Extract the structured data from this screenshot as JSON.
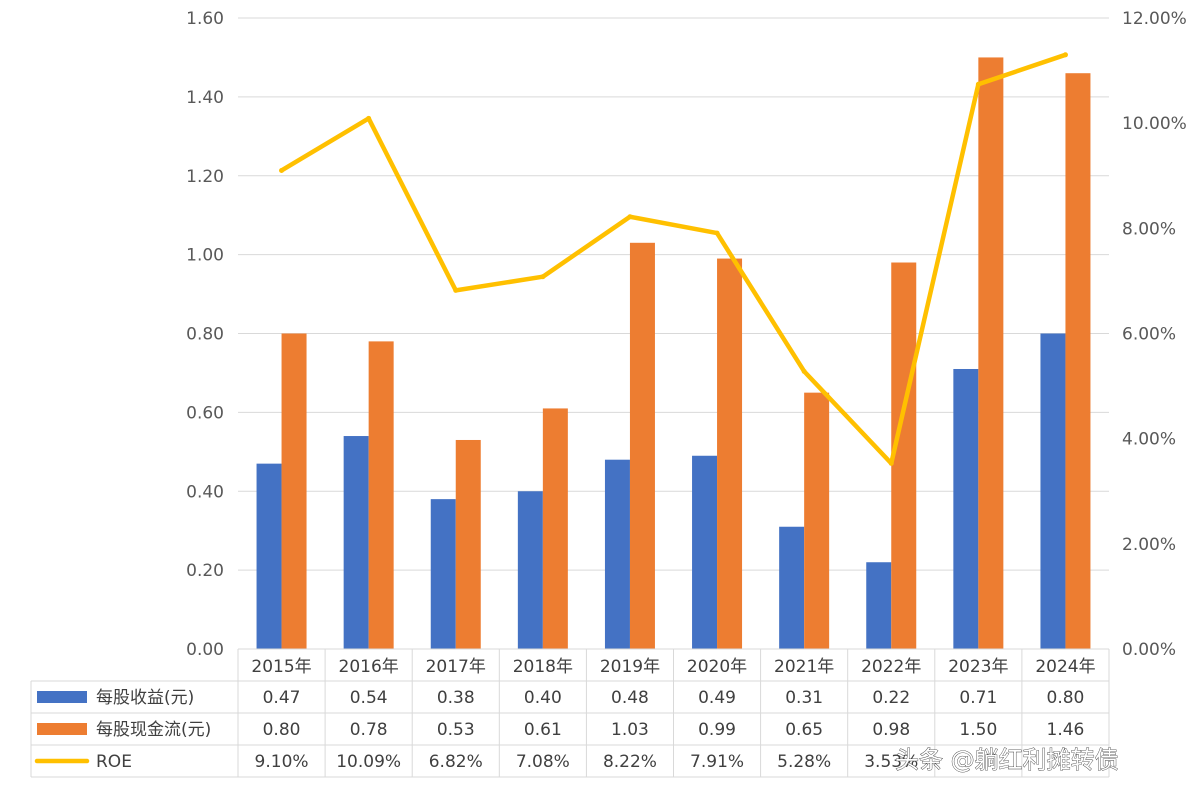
{
  "chart_data": {
    "type": "bar",
    "categories": [
      "2015年",
      "2016年",
      "2017年",
      "2018年",
      "2019年",
      "2020年",
      "2021年",
      "2022年",
      "2023年",
      "2024年"
    ],
    "series": [
      {
        "name": "每股收益(元)",
        "kind": "bar",
        "axis": "left",
        "color": "#4472C4",
        "values": [
          0.47,
          0.54,
          0.38,
          0.4,
          0.48,
          0.49,
          0.31,
          0.22,
          0.71,
          0.8
        ],
        "labels": [
          "0.47",
          "0.54",
          "0.38",
          "0.40",
          "0.48",
          "0.49",
          "0.31",
          "0.22",
          "0.71",
          "0.80"
        ]
      },
      {
        "name": "每股现金流(元)",
        "kind": "bar",
        "axis": "left",
        "color": "#ED7D31",
        "values": [
          0.8,
          0.78,
          0.53,
          0.61,
          1.03,
          0.99,
          0.65,
          0.98,
          1.5,
          1.46
        ],
        "labels": [
          "0.80",
          "0.78",
          "0.53",
          "0.61",
          "1.03",
          "0.99",
          "0.65",
          "0.98",
          "1.50",
          "1.46"
        ]
      },
      {
        "name": "ROE",
        "kind": "line",
        "axis": "right",
        "color": "#FFC000",
        "values": [
          9.1,
          10.09,
          6.82,
          7.08,
          8.22,
          7.91,
          5.28,
          3.53,
          10.74,
          11.3
        ],
        "labels": [
          "9.10%",
          "10.09%",
          "6.82%",
          "7.08%",
          "8.22%",
          "7.91%",
          "5.28%",
          "3.53%",
          "",
          ""
        ]
      }
    ],
    "y_left": {
      "ylim": [
        0,
        1.6
      ],
      "ticks": [
        "0.00",
        "0.20",
        "0.40",
        "0.60",
        "0.80",
        "1.00",
        "1.20",
        "1.40",
        "1.60"
      ]
    },
    "y_right": {
      "ylim": [
        0,
        12
      ],
      "ticks": [
        "0.00%",
        "2.00%",
        "4.00%",
        "6.00%",
        "8.00%",
        "10.00%",
        "12.00%"
      ]
    },
    "grid": true,
    "data_table": true
  },
  "watermark": "头条 @躺红利摊转债"
}
